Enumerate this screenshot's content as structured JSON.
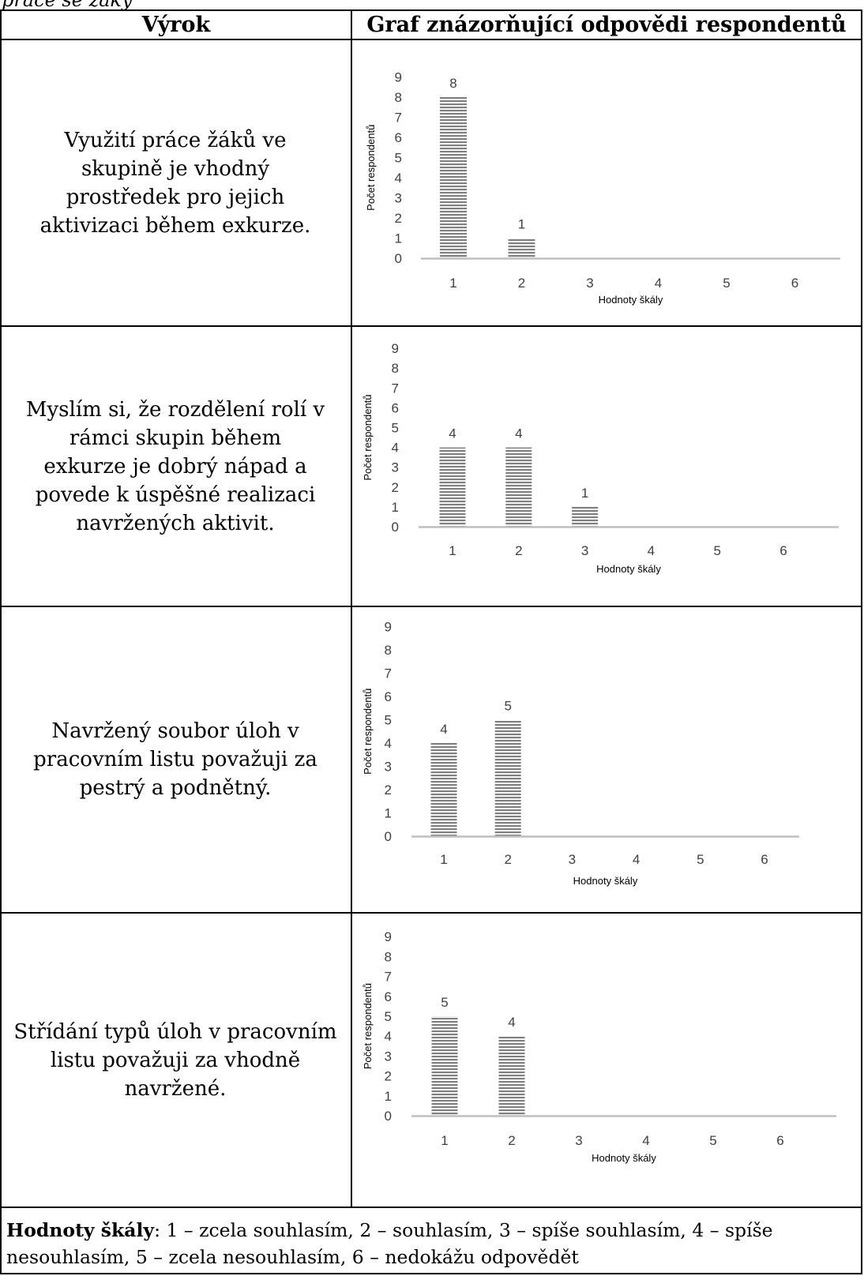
{
  "caption_fragment": "práce se žáky",
  "header": {
    "col1": "Výrok",
    "col2": "Graf znázorňující odpovědi respondentů"
  },
  "rows": [
    {
      "statement": "Využití práce žáků ve skupině je vhodný prostředek pro jejich aktivizaci během exkurze."
    },
    {
      "statement": "Myslím si, že rozdělení rolí v rámci skupin během exkurze je dobrý nápad a povede k úspěšné realizaci navržených aktivit."
    },
    {
      "statement": "Navržený soubor úloh v pracovním listu považuji za pestrý a podnětný."
    },
    {
      "statement": "Střídání typů úloh v pracovním listu považuji za vhodně navržené."
    }
  ],
  "chart_data": [
    {
      "type": "bar",
      "categories": [
        "1",
        "2",
        "3",
        "4",
        "5",
        "6"
      ],
      "values": [
        8,
        1,
        0,
        0,
        0,
        0
      ],
      "xlabel": "Hodnoty škály",
      "ylabel": "Počet respondentů",
      "ylim": [
        0,
        9
      ],
      "yticks": [
        "0",
        "1",
        "2",
        "3",
        "4",
        "5",
        "6",
        "7",
        "8",
        "9"
      ],
      "data_labels": [
        "8",
        "1",
        "",
        "",
        "",
        ""
      ],
      "grid": false
    },
    {
      "type": "bar",
      "categories": [
        "1",
        "2",
        "3",
        "4",
        "5",
        "6"
      ],
      "values": [
        4,
        4,
        1,
        0,
        0,
        0
      ],
      "xlabel": "Hodnoty škály",
      "ylabel": "Počet respondentů",
      "ylim": [
        0,
        9
      ],
      "yticks": [
        "0",
        "1",
        "2",
        "3",
        "4",
        "5",
        "6",
        "7",
        "8",
        "9"
      ],
      "data_labels": [
        "4",
        "4",
        "1",
        "",
        "",
        ""
      ],
      "grid": false
    },
    {
      "type": "bar",
      "categories": [
        "1",
        "2",
        "3",
        "4",
        "5",
        "6"
      ],
      "values": [
        4,
        5,
        0,
        0,
        0,
        0
      ],
      "xlabel": "Hodnoty škály",
      "ylabel": "Počet respondentů",
      "ylim": [
        0,
        9
      ],
      "yticks": [
        "0",
        "1",
        "2",
        "3",
        "4",
        "5",
        "6",
        "7",
        "8",
        "9"
      ],
      "data_labels": [
        "4",
        "5",
        "",
        "",
        "",
        ""
      ],
      "grid": false
    },
    {
      "type": "bar",
      "categories": [
        "1",
        "2",
        "3",
        "4",
        "5",
        "6"
      ],
      "values": [
        5,
        4,
        0,
        0,
        0,
        0
      ],
      "xlabel": "Hodnoty škály",
      "ylabel": "Počet respondentů",
      "ylim": [
        0,
        9
      ],
      "yticks": [
        "0",
        "1",
        "2",
        "3",
        "4",
        "5",
        "6",
        "7",
        "8",
        "9"
      ],
      "data_labels": [
        "5",
        "4",
        "",
        "",
        "",
        ""
      ],
      "grid": false
    }
  ],
  "legend": {
    "label": "Hodnoty škály",
    "text": ": 1 – zcela souhlasím, 2 – souhlasím, 3 – spíše souhlasím, 4 – spíše nesouhlasím, 5 – zcela nesouhlasím, 6 – nedokážu odpovědět"
  },
  "colors": {
    "bar_fill": "#7f7f7f",
    "bar_stripe": "#ffffff",
    "axis": "#bfbfbf",
    "text": "#404040",
    "border": "#000000"
  }
}
